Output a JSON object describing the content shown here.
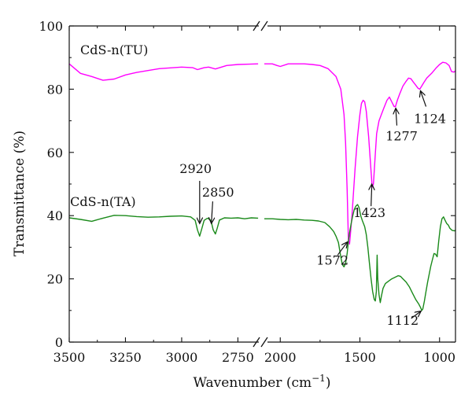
{
  "chart_data": {
    "type": "line",
    "xlabel": "Wavenumber (cm",
    "xlabel_sup": "−1",
    "xlabel_close": ")",
    "ylabel": "Transmittance (%)",
    "ylim": [
      0,
      100
    ],
    "y_ticks": [
      0,
      20,
      40,
      60,
      80,
      100
    ],
    "x_axis_broken": true,
    "x_ranges": [
      [
        3500,
        2650
      ],
      [
        2100,
        900
      ]
    ],
    "x_ticks": [
      {
        "value": 3500,
        "label": "3500"
      },
      {
        "value": 3250,
        "label": "3250"
      },
      {
        "value": 3000,
        "label": "3000"
      },
      {
        "value": 2750,
        "label": "2750"
      },
      {
        "value": 2000,
        "label": "2000"
      },
      {
        "value": 1500,
        "label": "1500"
      },
      {
        "value": 1000,
        "label": "1000"
      }
    ],
    "series": [
      {
        "name": "CdS-n(TU)",
        "color": "#ff00ff",
        "segments": [
          [
            [
              3500,
              88
            ],
            [
              3450,
              85
            ],
            [
              3400,
              84
            ],
            [
              3350,
              82.8
            ],
            [
              3300,
              83.2
            ],
            [
              3250,
              84.5
            ],
            [
              3200,
              85.3
            ],
            [
              3100,
              86.5
            ],
            [
              3000,
              87
            ],
            [
              2950,
              86.8
            ],
            [
              2930,
              86.2
            ],
            [
              2900,
              86.8
            ],
            [
              2880,
              87
            ],
            [
              2850,
              86.4
            ],
            [
              2800,
              87.5
            ],
            [
              2750,
              87.8
            ],
            [
              2700,
              87.9
            ],
            [
              2660,
              88
            ]
          ],
          [
            [
              2100,
              88
            ],
            [
              2050,
              88
            ],
            [
              2020,
              87.5
            ],
            [
              2000,
              87.2
            ],
            [
              1950,
              88
            ],
            [
              1900,
              88
            ],
            [
              1850,
              88
            ],
            [
              1800,
              87.8
            ],
            [
              1750,
              87.5
            ],
            [
              1700,
              86.5
            ],
            [
              1650,
              84
            ],
            [
              1620,
              80
            ],
            [
              1600,
              72
            ],
            [
              1590,
              63
            ],
            [
              1580,
              48
            ],
            [
              1572,
              32
            ],
            [
              1565,
              31
            ],
            [
              1560,
              34
            ],
            [
              1550,
              40
            ],
            [
              1530,
              55
            ],
            [
              1515,
              65
            ],
            [
              1500,
              72
            ],
            [
              1490,
              75.5
            ],
            [
              1480,
              76.5
            ],
            [
              1470,
              76
            ],
            [
              1460,
              73
            ],
            [
              1445,
              65
            ],
            [
              1430,
              54
            ],
            [
              1423,
              49
            ],
            [
              1415,
              50
            ],
            [
              1405,
              58
            ],
            [
              1395,
              66
            ],
            [
              1380,
              70
            ],
            [
              1365,
              72
            ],
            [
              1350,
              74
            ],
            [
              1330,
              76.5
            ],
            [
              1315,
              77.5
            ],
            [
              1300,
              76
            ],
            [
              1285,
              74.5
            ],
            [
              1277,
              74.5
            ],
            [
              1265,
              76.5
            ],
            [
              1250,
              78.5
            ],
            [
              1230,
              81
            ],
            [
              1210,
              82.5
            ],
            [
              1195,
              83.5
            ],
            [
              1180,
              83.3
            ],
            [
              1165,
              82.3
            ],
            [
              1150,
              81.3
            ],
            [
              1135,
              80.3
            ],
            [
              1124,
              80
            ],
            [
              1112,
              81
            ],
            [
              1100,
              82
            ],
            [
              1080,
              83.5
            ],
            [
              1050,
              85
            ],
            [
              1020,
              86.8
            ],
            [
              1000,
              87.8
            ],
            [
              980,
              88.5
            ],
            [
              960,
              88.3
            ],
            [
              940,
              87.5
            ],
            [
              925,
              85.6
            ],
            [
              910,
              85.4
            ],
            [
              900,
              85.8
            ]
          ]
        ]
      },
      {
        "name": "CdS-n(TA)",
        "color": "#1a8a1a",
        "segments": [
          [
            [
              3500,
              39.3
            ],
            [
              3450,
              38.8
            ],
            [
              3400,
              38.2
            ],
            [
              3380,
              38.6
            ],
            [
              3350,
              39.2
            ],
            [
              3300,
              40.1
            ],
            [
              3250,
              40
            ],
            [
              3200,
              39.7
            ],
            [
              3150,
              39.5
            ],
            [
              3100,
              39.6
            ],
            [
              3050,
              39.8
            ],
            [
              3000,
              39.9
            ],
            [
              2960,
              39.6
            ],
            [
              2940,
              38.5
            ],
            [
              2930,
              35.5
            ],
            [
              2920,
              33.5
            ],
            [
              2912,
              35.5
            ],
            [
              2900,
              38.5
            ],
            [
              2885,
              39.2
            ],
            [
              2870,
              38.5
            ],
            [
              2860,
              35.5
            ],
            [
              2850,
              34.2
            ],
            [
              2842,
              36
            ],
            [
              2832,
              38.6
            ],
            [
              2810,
              39.3
            ],
            [
              2780,
              39.2
            ],
            [
              2750,
              39.3
            ],
            [
              2720,
              39
            ],
            [
              2690,
              39.3
            ],
            [
              2660,
              39.2
            ]
          ],
          [
            [
              2100,
              39
            ],
            [
              2050,
              39
            ],
            [
              2000,
              38.8
            ],
            [
              1950,
              38.7
            ],
            [
              1900,
              38.8
            ],
            [
              1850,
              38.6
            ],
            [
              1800,
              38.5
            ],
            [
              1760,
              38.3
            ],
            [
              1720,
              37.8
            ],
            [
              1690,
              36.5
            ],
            [
              1665,
              35
            ],
            [
              1650,
              33.5
            ],
            [
              1635,
              31.5
            ],
            [
              1620,
              27
            ],
            [
              1610,
              24.5
            ],
            [
              1600,
              23.8
            ],
            [
              1590,
              25
            ],
            [
              1580,
              28
            ],
            [
              1572,
              32
            ],
            [
              1565,
              34.5
            ],
            [
              1555,
              37.5
            ],
            [
              1545,
              40
            ],
            [
              1535,
              42
            ],
            [
              1525,
              43
            ],
            [
              1515,
              43.5
            ],
            [
              1505,
              42.5
            ],
            [
              1495,
              40
            ],
            [
              1485,
              38.5
            ],
            [
              1470,
              36.5
            ],
            [
              1460,
              34
            ],
            [
              1450,
              30
            ],
            [
              1440,
              25
            ],
            [
              1430,
              20
            ],
            [
              1420,
              16
            ],
            [
              1410,
              13.5
            ],
            [
              1403,
              13
            ],
            [
              1397,
              16
            ],
            [
              1392,
              27.5
            ],
            [
              1388,
              20
            ],
            [
              1380,
              15
            ],
            [
              1372,
              12.5
            ],
            [
              1365,
              14.5
            ],
            [
              1355,
              17
            ],
            [
              1340,
              18.5
            ],
            [
              1320,
              19.3
            ],
            [
              1300,
              20
            ],
            [
              1280,
              20.5
            ],
            [
              1260,
              21
            ],
            [
              1245,
              20.8
            ],
            [
              1230,
              20
            ],
            [
              1210,
              19
            ],
            [
              1190,
              17.5
            ],
            [
              1170,
              15.5
            ],
            [
              1150,
              13.5
            ],
            [
              1130,
              12
            ],
            [
              1120,
              11
            ],
            [
              1112,
              10
            ],
            [
              1105,
              10.5
            ],
            [
              1095,
              13
            ],
            [
              1085,
              16
            ],
            [
              1075,
              19
            ],
            [
              1065,
              21.5
            ],
            [
              1055,
              24
            ],
            [
              1045,
              26
            ],
            [
              1035,
              28
            ],
            [
              1025,
              27.8
            ],
            [
              1015,
              27
            ],
            [
              1005,
              32
            ],
            [
              995,
              36.5
            ],
            [
              985,
              39
            ],
            [
              975,
              39.6
            ],
            [
              965,
              38.5
            ],
            [
              955,
              37.5
            ],
            [
              945,
              37
            ],
            [
              935,
              36
            ],
            [
              920,
              35.3
            ],
            [
              905,
              35.2
            ],
            [
              900,
              35.4
            ]
          ]
        ]
      }
    ],
    "series_labels": [
      {
        "series": 0,
        "text": "CdS-n(TU)",
        "at": [
          3300,
          91
        ]
      },
      {
        "series": 1,
        "text": "CdS-n(TA)",
        "at": [
          3350,
          43
        ]
      }
    ],
    "annotations": [
      {
        "text": "2920",
        "label_at": [
          2938,
          53.5
        ],
        "align": "middle",
        "line": [
          [
            2920,
            51
          ],
          [
            2920,
            37.5
          ]
        ],
        "arrow": true
      },
      {
        "text": "2850",
        "label_at": [
          2838,
          46
        ],
        "align": "middle",
        "line": [
          [
            2862,
            44.5
          ],
          [
            2868,
            37.5
          ]
        ],
        "arrow": true
      },
      {
        "text": "1572",
        "label_at": [
          1672,
          24.5
        ],
        "align": "middle",
        "line": [
          [
            1640,
            27.5
          ],
          [
            1578,
            31.7
          ]
        ],
        "arrow": true
      },
      {
        "text": "1423",
        "label_at": [
          1440,
          39.5
        ],
        "align": "middle",
        "line": [
          [
            1430,
            43
          ],
          [
            1425,
            50
          ]
        ],
        "arrow": true
      },
      {
        "text": "1277",
        "label_at": [
          1238,
          63.8
        ],
        "align": "middle",
        "line": [
          [
            1268,
            68.5
          ],
          [
            1275,
            74
          ]
        ],
        "arrow": true
      },
      {
        "text": "1124",
        "label_at": [
          1060,
          69.3
        ],
        "align": "middle",
        "line": [
          [
            1085,
            74.5
          ],
          [
            1120,
            79.5
          ]
        ],
        "arrow": true
      },
      {
        "text": "1112",
        "label_at": [
          1232,
          5.5
        ],
        "align": "middle",
        "line": [
          [
            1178,
            7.5
          ],
          [
            1116,
            9.8
          ]
        ],
        "arrow": true
      }
    ]
  }
}
